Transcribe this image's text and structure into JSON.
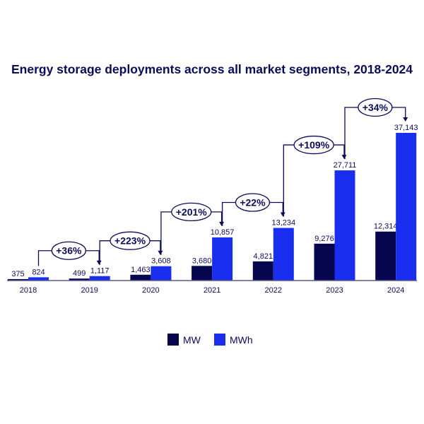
{
  "chart_data": {
    "type": "bar",
    "title": "Energy storage deployments across all market segments, 2018-2024",
    "categories": [
      "2018",
      "2019",
      "2020",
      "2021",
      "2022",
      "2023",
      "2024"
    ],
    "series": [
      {
        "name": "MW",
        "color": "#06064f",
        "values": [
          375,
          499,
          1463,
          3680,
          4821,
          9276,
          12314
        ],
        "labels": [
          "375",
          "499",
          "1,463",
          "3,680",
          "4,821",
          "9,276",
          "12,314"
        ]
      },
      {
        "name": "MWh",
        "color": "#1a2ef0",
        "values": [
          824,
          1117,
          3608,
          10857,
          13234,
          27711,
          37143
        ],
        "labels": [
          "824",
          "1,117",
          "3,608",
          "10,857",
          "13,234",
          "27,711",
          "37,143"
        ]
      }
    ],
    "growth_annotations": [
      "+36%",
      "+223%",
      "+201%",
      "+22%",
      "+109%",
      "+34%"
    ],
    "ylim": [
      0,
      37143
    ],
    "grid": false,
    "legend": "bottom-center"
  }
}
